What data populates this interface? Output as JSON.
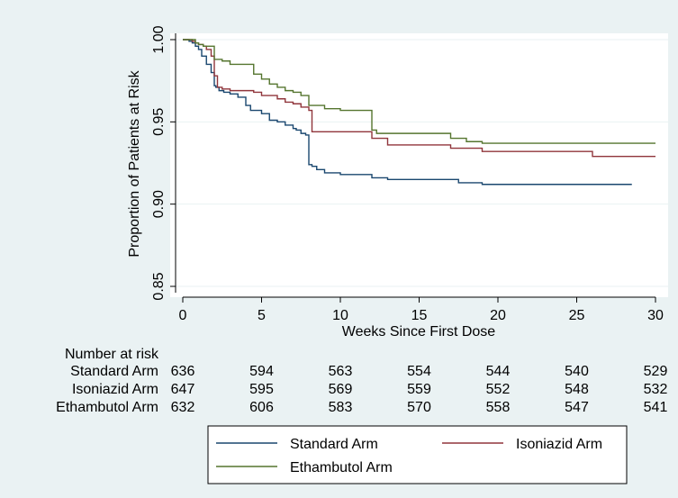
{
  "chart_data": {
    "type": "line",
    "title": "",
    "xlabel": "Weeks Since First Dose",
    "ylabel": "Proportion of Patients at Risk",
    "xlim": [
      0,
      30
    ],
    "ylim": [
      0.85,
      1.0
    ],
    "x_ticks": [
      0,
      5,
      10,
      15,
      20,
      25,
      30
    ],
    "y_ticks": [
      {
        "value": 0.85,
        "label": "0.85"
      },
      {
        "value": 0.9,
        "label": "0.90"
      },
      {
        "value": 0.95,
        "label": "0.95"
      },
      {
        "value": 1.0,
        "label": "1.00"
      }
    ],
    "grid": "horizontal",
    "legend_position": "bottom",
    "series": [
      {
        "name": "Standard Arm",
        "color": "#1a476f",
        "x": [
          0,
          0.4,
          0.6,
          0.8,
          1.0,
          1.2,
          1.5,
          1.8,
          2.0,
          2.1,
          2.3,
          2.6,
          3.0,
          3.5,
          4.0,
          4.3,
          5.0,
          5.5,
          6.0,
          6.5,
          7.0,
          7.2,
          7.5,
          7.8,
          8.0,
          8.2,
          8.5,
          9.0,
          10.0,
          12.0,
          13.0,
          15.0,
          17.5,
          19.0,
          28.5
        ],
        "y": [
          1.0,
          0.999,
          0.998,
          0.996,
          0.994,
          0.99,
          0.985,
          0.98,
          0.972,
          0.971,
          0.969,
          0.968,
          0.967,
          0.965,
          0.96,
          0.957,
          0.955,
          0.951,
          0.95,
          0.948,
          0.946,
          0.945,
          0.943,
          0.942,
          0.924,
          0.923,
          0.921,
          0.919,
          0.918,
          0.916,
          0.915,
          0.915,
          0.913,
          0.912,
          0.912
        ]
      },
      {
        "name": "Isoniazid Arm",
        "color": "#90353b",
        "x": [
          0,
          0.6,
          0.8,
          1.0,
          1.3,
          1.5,
          1.8,
          2.0,
          2.2,
          2.5,
          3.0,
          4.0,
          4.5,
          5.0,
          6.0,
          6.5,
          7.0,
          7.5,
          8.0,
          8.2,
          12.0,
          13.0,
          17.0,
          19.0,
          26.0,
          30.0
        ],
        "y": [
          1.0,
          0.999,
          0.998,
          0.997,
          0.996,
          0.994,
          0.99,
          0.978,
          0.971,
          0.97,
          0.969,
          0.969,
          0.968,
          0.966,
          0.964,
          0.962,
          0.961,
          0.959,
          0.957,
          0.944,
          0.94,
          0.936,
          0.934,
          0.932,
          0.929,
          0.929
        ]
      },
      {
        "name": "Ethambutol Arm",
        "color": "#55752f",
        "x": [
          0,
          0.8,
          1.0,
          1.3,
          2.0,
          2.5,
          3.0,
          4.5,
          5.0,
          5.5,
          6.0,
          6.5,
          7.0,
          7.5,
          8.0,
          9.0,
          10.0,
          12.0,
          12.3,
          17.0,
          18.0,
          19.0,
          30.0
        ],
        "y": [
          1.0,
          0.998,
          0.997,
          0.996,
          0.988,
          0.987,
          0.985,
          0.979,
          0.976,
          0.973,
          0.971,
          0.969,
          0.968,
          0.966,
          0.96,
          0.958,
          0.957,
          0.945,
          0.943,
          0.94,
          0.938,
          0.937,
          0.937
        ]
      }
    ],
    "risk_table": {
      "title": "Number at risk",
      "rows": [
        {
          "label": "Standard Arm",
          "values": [
            636,
            594,
            563,
            554,
            544,
            540,
            529
          ]
        },
        {
          "label": "Isoniazid Arm",
          "values": [
            647,
            595,
            569,
            559,
            552,
            548,
            532
          ]
        },
        {
          "label": "Ethambutol Arm",
          "values": [
            632,
            606,
            583,
            570,
            558,
            547,
            541
          ]
        }
      ]
    }
  }
}
